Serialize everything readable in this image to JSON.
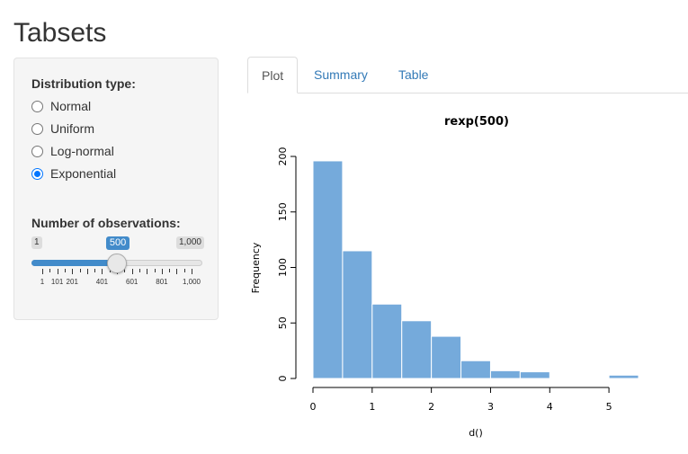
{
  "page": {
    "title": "Tabsets"
  },
  "sidebar": {
    "dist_label": "Distribution type:",
    "options": [
      {
        "label": "Normal",
        "selected": false
      },
      {
        "label": "Uniform",
        "selected": false
      },
      {
        "label": "Log-normal",
        "selected": false
      },
      {
        "label": "Exponential",
        "selected": true
      }
    ],
    "obs_label": "Number of observations:",
    "slider": {
      "min_label": "1",
      "max_label": "1,000",
      "value_label": "500",
      "value": 500,
      "min": 1,
      "max": 1000,
      "tick_labels": [
        "1",
        "101",
        "201",
        "401",
        "601",
        "801",
        "1,000"
      ],
      "accent": "#428bca"
    }
  },
  "tabs": [
    {
      "label": "Plot",
      "active": true
    },
    {
      "label": "Summary",
      "active": false
    },
    {
      "label": "Table",
      "active": false
    }
  ],
  "chart_data": {
    "type": "bar",
    "title": "rexp(500)",
    "xlabel": "d()",
    "ylabel": "Frequency",
    "bin_edges": [
      0,
      0.5,
      1,
      1.5,
      2,
      2.5,
      3,
      3.5,
      4,
      4.5,
      5,
      5.5
    ],
    "values": [
      196,
      115,
      67,
      52,
      38,
      16,
      7,
      6,
      0,
      0,
      3
    ],
    "x_ticks": [
      "0",
      "1",
      "2",
      "3",
      "4",
      "5"
    ],
    "y_ticks": [
      "0",
      "50",
      "100",
      "150",
      "200"
    ],
    "xlim": [
      0,
      5.5
    ],
    "ylim": [
      0,
      200
    ],
    "bar_color": "#75aadb",
    "bar_border": "#ffffff"
  }
}
